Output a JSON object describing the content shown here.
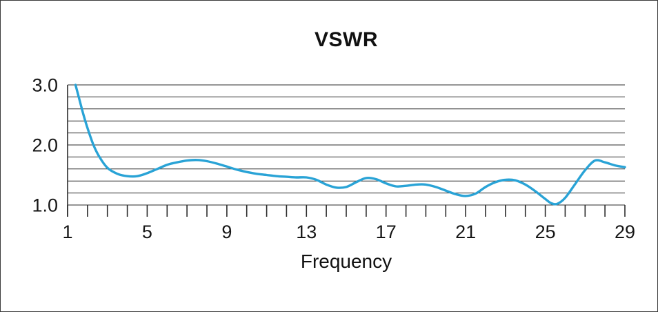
{
  "chart_data": {
    "type": "line",
    "title": "VSWR",
    "xlabel": "Frequency",
    "ylabel": "",
    "xlim": [
      1,
      29
    ],
    "ylim": [
      1.0,
      3.0
    ],
    "grid": true,
    "legend": "none",
    "y_grid_step": 0.2,
    "x_minor_tick_step": 1,
    "line_color": "#29a3d6",
    "y_ticks": [
      {
        "v": 1.0,
        "label": "1.0"
      },
      {
        "v": 2.0,
        "label": "2.0"
      },
      {
        "v": 3.0,
        "label": "3.0"
      }
    ],
    "x_ticks": [
      {
        "v": 1,
        "label": "1"
      },
      {
        "v": 5,
        "label": "5"
      },
      {
        "v": 9,
        "label": "9"
      },
      {
        "v": 13,
        "label": "13"
      },
      {
        "v": 17,
        "label": "17"
      },
      {
        "v": 21,
        "label": "21"
      },
      {
        "v": 25,
        "label": "25"
      },
      {
        "v": 29,
        "label": "29"
      }
    ],
    "series": [
      {
        "name": "VSWR",
        "points": [
          [
            1.4,
            3.0
          ],
          [
            1.6,
            2.75
          ],
          [
            1.8,
            2.5
          ],
          [
            2.0,
            2.28
          ],
          [
            2.3,
            2.0
          ],
          [
            2.6,
            1.8
          ],
          [
            3.0,
            1.62
          ],
          [
            3.5,
            1.52
          ],
          [
            4.0,
            1.48
          ],
          [
            4.5,
            1.48
          ],
          [
            5.0,
            1.53
          ],
          [
            5.5,
            1.6
          ],
          [
            6.0,
            1.67
          ],
          [
            6.5,
            1.71
          ],
          [
            7.0,
            1.74
          ],
          [
            7.5,
            1.75
          ],
          [
            8.0,
            1.73
          ],
          [
            8.5,
            1.69
          ],
          [
            9.0,
            1.64
          ],
          [
            9.5,
            1.59
          ],
          [
            10.0,
            1.55
          ],
          [
            10.5,
            1.52
          ],
          [
            11.0,
            1.5
          ],
          [
            11.5,
            1.48
          ],
          [
            12.0,
            1.47
          ],
          [
            12.5,
            1.46
          ],
          [
            13.0,
            1.46
          ],
          [
            13.5,
            1.42
          ],
          [
            14.0,
            1.34
          ],
          [
            14.5,
            1.29
          ],
          [
            15.0,
            1.3
          ],
          [
            15.5,
            1.38
          ],
          [
            16.0,
            1.45
          ],
          [
            16.5,
            1.43
          ],
          [
            17.0,
            1.36
          ],
          [
            17.5,
            1.31
          ],
          [
            18.0,
            1.32
          ],
          [
            18.5,
            1.34
          ],
          [
            19.0,
            1.34
          ],
          [
            19.5,
            1.3
          ],
          [
            20.0,
            1.24
          ],
          [
            20.5,
            1.18
          ],
          [
            21.0,
            1.15
          ],
          [
            21.5,
            1.19
          ],
          [
            22.0,
            1.3
          ],
          [
            22.5,
            1.38
          ],
          [
            23.0,
            1.42
          ],
          [
            23.5,
            1.41
          ],
          [
            24.0,
            1.34
          ],
          [
            24.5,
            1.23
          ],
          [
            25.0,
            1.1
          ],
          [
            25.3,
            1.03
          ],
          [
            25.6,
            1.02
          ],
          [
            26.0,
            1.12
          ],
          [
            26.5,
            1.35
          ],
          [
            27.0,
            1.58
          ],
          [
            27.5,
            1.74
          ],
          [
            28.0,
            1.71
          ],
          [
            28.5,
            1.66
          ],
          [
            29.0,
            1.63
          ]
        ]
      }
    ]
  }
}
